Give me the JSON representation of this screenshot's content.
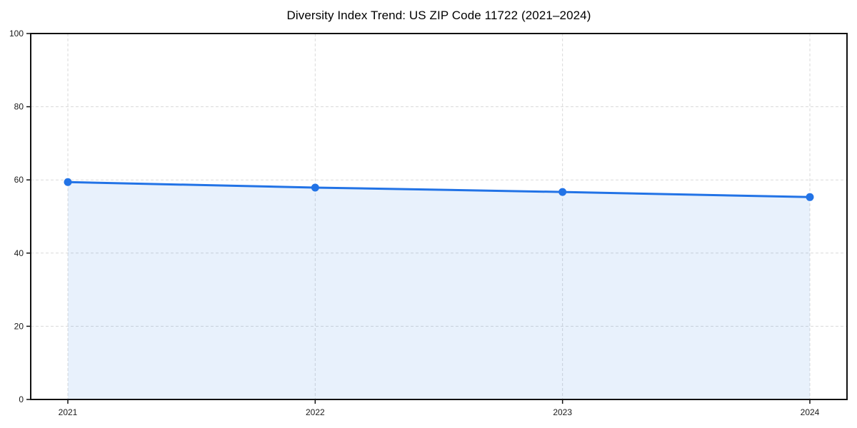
{
  "chart_data": {
    "type": "area",
    "title": "Diversity Index Trend: US ZIP Code 11722 (2021–2024)",
    "x_categories": [
      "2021",
      "2022",
      "2023",
      "2024"
    ],
    "series": [
      {
        "name": "Diversity Index",
        "values": [
          59.4,
          57.9,
          56.7,
          55.3
        ]
      }
    ],
    "xlabel": "",
    "ylabel": "",
    "ylim": [
      0,
      100
    ],
    "yticks": [
      0,
      20,
      40,
      60,
      80,
      100
    ],
    "grid": "dashed",
    "legend": "none",
    "colors": {
      "line": "#2273e6",
      "marker": "#2273e6",
      "fill": "rgba(34,115,230,0.10)",
      "gridline": "#dadada",
      "spine": "#111111",
      "tick_label": "#1a1a1a",
      "title": "#000000"
    }
  }
}
